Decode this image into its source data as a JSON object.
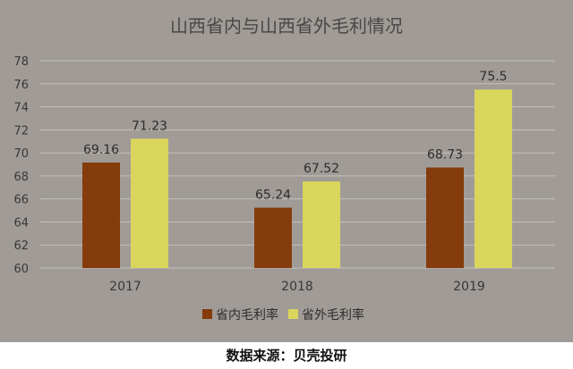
{
  "chart_data": {
    "type": "bar",
    "title": "山西省内与山西省外毛利情况",
    "categories": [
      "2017",
      "2018",
      "2019"
    ],
    "series": [
      {
        "name": "省内毛利率",
        "values": [
          69.16,
          65.24,
          68.73
        ],
        "color": "#843c0c"
      },
      {
        "name": "省外毛利率",
        "values": [
          71.23,
          67.52,
          75.5
        ],
        "color": "#d9d65b"
      }
    ],
    "data_labels": [
      [
        "69.16",
        "65.24",
        "68.73"
      ],
      [
        "71.23",
        "67.52",
        "75.5"
      ]
    ],
    "ylim": [
      60,
      78
    ],
    "yticks": [
      "60",
      "62",
      "64",
      "66",
      "68",
      "70",
      "72",
      "74",
      "76",
      "78"
    ],
    "grid": true,
    "legend_position": "bottom",
    "background": "#a09b97",
    "gridline_color": "#c4c0bd"
  },
  "source_note": "数据来源：贝壳投研"
}
